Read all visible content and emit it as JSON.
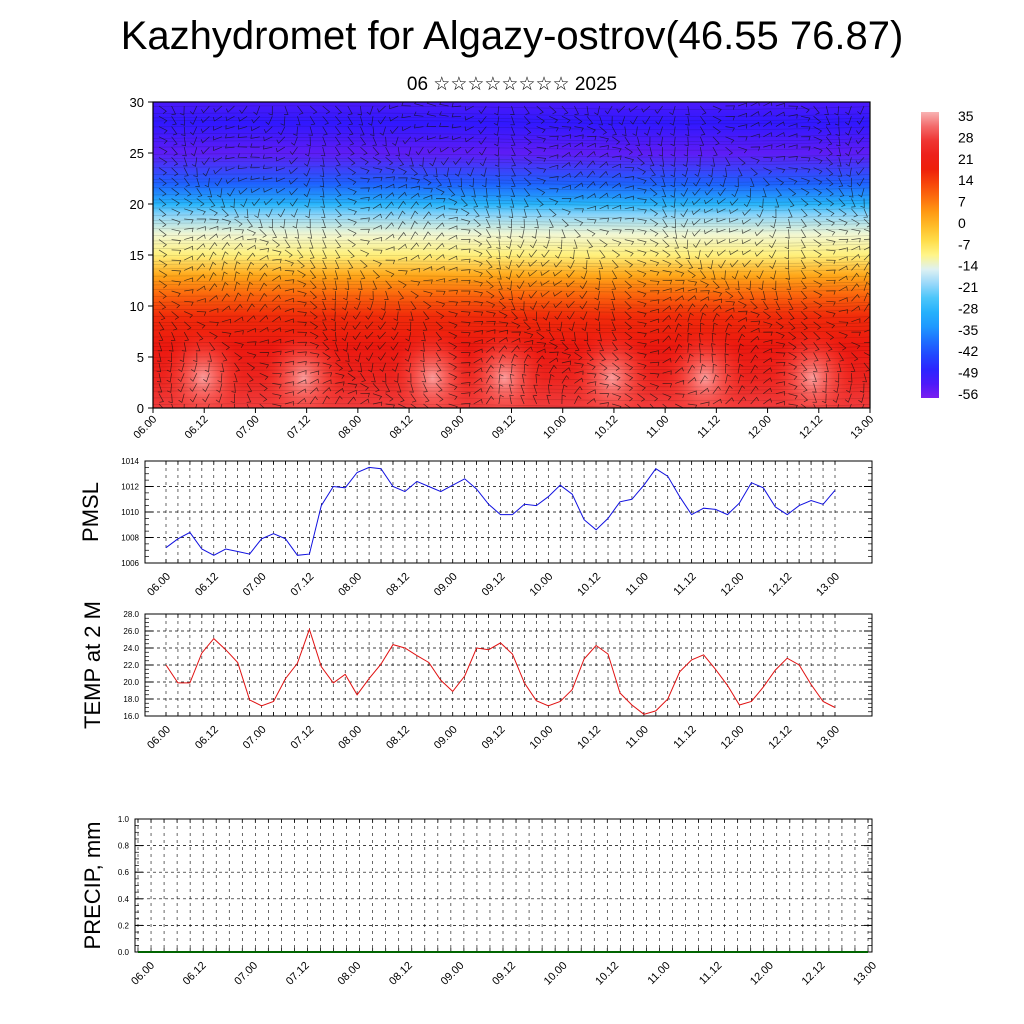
{
  "title": "Kazhydromet for Algazy-ostrov(46.55 76.87)",
  "subtitle": "06 ☆☆☆☆☆☆☆☆ 2025",
  "time_labels": [
    "06.00",
    "06.12",
    "07.00",
    "07.12",
    "08.00",
    "08.12",
    "09.00",
    "09.12",
    "10.00",
    "10.12",
    "11.00",
    "11.12",
    "12.00",
    "12.12",
    "13.00"
  ],
  "colors": {
    "pmsl_line": "#1010e0",
    "temp_line": "#e01010",
    "precip_line": "#006400",
    "axis": "#000000"
  },
  "chart_data": [
    {
      "type": "heatmap",
      "title": "",
      "xlabel": "",
      "ylabel": "",
      "xtick_labels": [
        "06.00",
        "06.12",
        "07.00",
        "07.12",
        "08.00",
        "08.12",
        "09.00",
        "09.12",
        "10.00",
        "10.12",
        "11.00",
        "11.12",
        "12.00",
        "12.12",
        "13.00"
      ],
      "ytick_values": [
        0,
        5,
        10,
        15,
        20,
        25,
        30
      ],
      "ylim": [
        0,
        30
      ],
      "colorbar_labels": [
        "35",
        "28",
        "21",
        "14",
        "7",
        "0",
        "-7",
        "-14",
        "-21",
        "-28",
        "-35",
        "-42",
        "-49",
        "-56"
      ],
      "color_range": [
        -60,
        38
      ],
      "temperature_bands": [
        {
          "height": 0,
          "value": 30
        },
        {
          "height": 3,
          "value": 24
        },
        {
          "height": 6,
          "value": 21
        },
        {
          "height": 9,
          "value": 17
        },
        {
          "height": 11,
          "value": 10
        },
        {
          "height": 13,
          "value": 2
        },
        {
          "height": 15,
          "value": -10
        },
        {
          "height": 17,
          "value": -14
        },
        {
          "height": 19,
          "value": -22
        },
        {
          "height": 20,
          "value": -30
        },
        {
          "height": 22,
          "value": -42
        },
        {
          "height": 25,
          "value": -57
        },
        {
          "height": 28,
          "value": -52
        },
        {
          "height": 30,
          "value": -55
        }
      ],
      "grid": false
    },
    {
      "type": "line",
      "ylabel": "PMSL",
      "xtick_labels": [
        "06.00",
        "06.12",
        "07.00",
        "07.12",
        "08.00",
        "08.12",
        "09.00",
        "09.12",
        "10.00",
        "10.12",
        "11.00",
        "11.12",
        "12.00",
        "12.12",
        "13.00"
      ],
      "ytick_labels": [
        "1014",
        "1012",
        "1010",
        "1008",
        "1006"
      ],
      "ylim": [
        1006,
        1014
      ],
      "grid": true,
      "series": [
        {
          "values": [
            1007.2,
            1007.9,
            1008.4,
            1007.1,
            1006.6,
            1007.1,
            1006.9,
            1006.7,
            1007.9,
            1008.3,
            1007.9,
            1006.6,
            1006.7,
            1010.5,
            1012.0,
            1011.9,
            1013.1,
            1013.5,
            1013.4,
            1012.0,
            1011.6,
            1012.4,
            1012.0,
            1011.6,
            1012.1,
            1012.6,
            1011.8,
            1010.6,
            1009.8,
            1009.8,
            1010.6,
            1010.5,
            1011.2,
            1012.1,
            1011.4,
            1009.4,
            1008.6,
            1009.5,
            1010.8,
            1011.0,
            1012.1,
            1013.4,
            1012.8,
            1011.2,
            1009.8,
            1010.3,
            1010.2,
            1009.8,
            1010.7,
            1012.3,
            1011.9,
            1010.4,
            1009.8,
            1010.5,
            1010.9,
            1010.6,
            1011.7
          ]
        }
      ]
    },
    {
      "type": "line",
      "ylabel": "TEMP at 2 M",
      "xtick_labels": [
        "06.00",
        "06.12",
        "07.00",
        "07.12",
        "08.00",
        "08.12",
        "09.00",
        "09.12",
        "10.00",
        "10.12",
        "11.00",
        "11.12",
        "12.00",
        "12.12",
        "13.00"
      ],
      "ytick_labels": [
        "28.0",
        "26.0",
        "24.0",
        "22.0",
        "20.0",
        "18.0",
        "16.0"
      ],
      "ylim": [
        16,
        28
      ],
      "grid": true,
      "series": [
        {
          "values": [
            22.0,
            19.9,
            19.9,
            23.4,
            25.1,
            23.8,
            22.3,
            17.9,
            17.2,
            17.7,
            20.4,
            22.2,
            26.2,
            21.8,
            19.9,
            20.9,
            18.5,
            20.4,
            22.1,
            24.4,
            24.0,
            23.1,
            22.3,
            20.2,
            18.9,
            20.7,
            24.0,
            23.8,
            24.6,
            23.3,
            19.9,
            17.8,
            17.2,
            17.7,
            19.1,
            22.7,
            24.3,
            23.3,
            18.7,
            17.3,
            16.2,
            16.6,
            18.0,
            21.2,
            22.6,
            23.2,
            21.5,
            19.6,
            17.3,
            17.7,
            19.4,
            21.4,
            22.8,
            22.0,
            19.7,
            17.7,
            17.0
          ]
        }
      ]
    },
    {
      "type": "line",
      "ylabel": "PRECIP, mm",
      "xtick_labels": [
        "06.00",
        "06.12",
        "07.00",
        "07.12",
        "08.00",
        "08.12",
        "09.00",
        "09.12",
        "10.00",
        "10.12",
        "11.00",
        "11.12",
        "12.00",
        "12.12",
        "13.00"
      ],
      "ytick_labels": [
        "1.0",
        "0.8",
        "0.6",
        "0.4",
        "0.2",
        "0.0"
      ],
      "ylim": [
        0,
        1
      ],
      "grid": true,
      "series": [
        {
          "values": [
            0,
            0,
            0,
            0,
            0,
            0,
            0,
            0,
            0,
            0,
            0,
            0,
            0,
            0,
            0,
            0,
            0,
            0,
            0,
            0,
            0,
            0,
            0,
            0,
            0,
            0,
            0,
            0,
            0,
            0,
            0,
            0,
            0,
            0,
            0,
            0,
            0,
            0,
            0,
            0,
            0,
            0,
            0,
            0,
            0,
            0,
            0,
            0,
            0,
            0,
            0,
            0,
            0,
            0,
            0,
            0,
            0
          ]
        }
      ]
    }
  ]
}
